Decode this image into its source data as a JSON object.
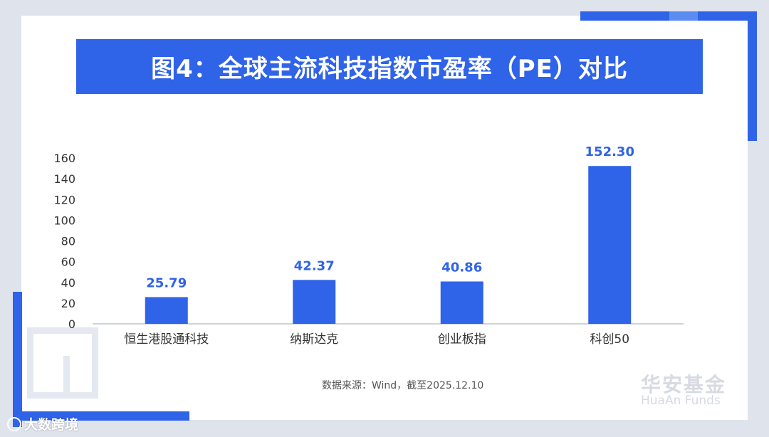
{
  "title": "图4：全球主流科技指数市盈率（PE）对比",
  "source_note": "数据来源：Wind，截至2025.12.10",
  "logo": {
    "cn": "华安基金",
    "en": "HuaAn Funds"
  },
  "watermark": "大数跨境",
  "colors": {
    "accent": "#2f63e8",
    "background": "#dfe3ec",
    "card": "#ffffff"
  },
  "chart_data": {
    "type": "bar",
    "categories": [
      "恒生港股通科技",
      "纳斯达克",
      "创业板指",
      "科创50"
    ],
    "values": [
      25.79,
      42.37,
      40.86,
      152.3
    ],
    "value_labels": [
      "25.79",
      "42.37",
      "40.86",
      "152.30"
    ],
    "ylim": [
      0,
      160
    ],
    "yticks": [
      0,
      20,
      40,
      60,
      80,
      100,
      120,
      140,
      160
    ],
    "grid": false,
    "legend": "none"
  }
}
